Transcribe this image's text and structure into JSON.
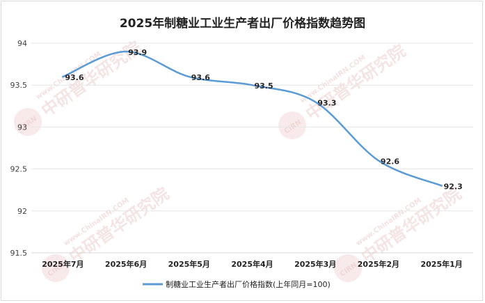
{
  "chart_data": {
    "type": "line",
    "title": "2025年制糖业工业生产者出厂价格指数趋势图",
    "categories": [
      "2025年7月",
      "2025年6月",
      "2025年5月",
      "2025年4月",
      "2025年3月",
      "2025年2月",
      "2025年1月"
    ],
    "series": [
      {
        "name": "制糖业工业生产者出厂价格指数(上年同月=100)",
        "values": [
          93.6,
          93.9,
          93.6,
          93.5,
          93.3,
          92.6,
          92.3
        ],
        "color": "#5b9bd5"
      }
    ],
    "ylim": [
      91.5,
      94
    ],
    "yticks": [
      "94",
      "93.5",
      "93",
      "92.5",
      "92",
      "91.5"
    ],
    "grid": true,
    "legend_position": "bottom"
  },
  "watermark": {
    "brand_en": "www.ChinaIRN.COM",
    "brand_cn": "中研普华研究院",
    "logo": "CIRN",
    "color": "#d98c8c"
  }
}
